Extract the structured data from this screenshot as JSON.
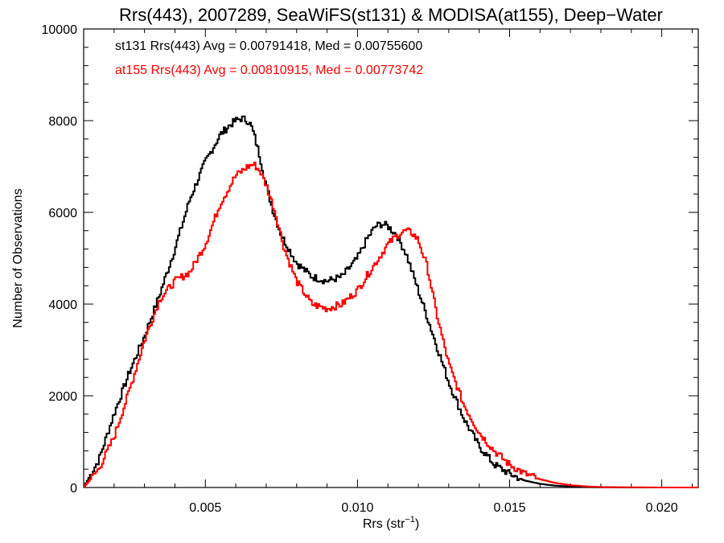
{
  "chart_data": {
    "type": "line",
    "title": "Rrs(443), 2007289, SeaWiFS(st131) & MODISA(at155), Deep−Water",
    "xlabel_main": "Rrs (str",
    "xlabel_sup": "−1",
    "xlabel_end": ")",
    "ylabel": "Number of Observations",
    "xlim": [
      0.001,
      0.0212
    ],
    "ylim": [
      0,
      10000
    ],
    "x_ticks": [
      0.005,
      0.01,
      0.015,
      0.02
    ],
    "x_tick_labels": [
      "0.005",
      "0.010",
      "0.015",
      "0.020"
    ],
    "y_ticks": [
      0,
      2000,
      4000,
      6000,
      8000,
      10000
    ],
    "y_tick_labels": [
      "0",
      "2000",
      "4000",
      "6000",
      "8000",
      "10000"
    ],
    "step": true,
    "series": [
      {
        "name": "st131",
        "color": "#000000",
        "legend": "st131 Rrs(443) Avg = 0.00791418, Med = 0.00755600",
        "x": [
          0.001,
          0.0015,
          0.002,
          0.0025,
          0.003,
          0.0035,
          0.004,
          0.0045,
          0.005,
          0.0055,
          0.0058,
          0.006,
          0.0062,
          0.0064,
          0.0065,
          0.0066,
          0.0068,
          0.007,
          0.0072,
          0.0075,
          0.008,
          0.0085,
          0.009,
          0.0095,
          0.01,
          0.0103,
          0.0106,
          0.0108,
          0.011,
          0.0113,
          0.0116,
          0.012,
          0.0125,
          0.013,
          0.0135,
          0.014,
          0.0145,
          0.015,
          0.0155,
          0.016,
          0.0165,
          0.017,
          0.0175,
          0.018,
          0.019,
          0.02,
          0.0212
        ],
        "y": [
          0,
          600,
          1600,
          2500,
          3300,
          4200,
          5200,
          6300,
          7100,
          7700,
          7900,
          8000,
          8050,
          8000,
          7900,
          7700,
          7200,
          6600,
          6100,
          5500,
          4900,
          4600,
          4500,
          4600,
          5000,
          5400,
          5700,
          5750,
          5700,
          5500,
          5100,
          4300,
          3300,
          2300,
          1500,
          900,
          500,
          300,
          150,
          80,
          40,
          20,
          10,
          5,
          0,
          0,
          0
        ]
      },
      {
        "name": "at155",
        "color": "#ff0000",
        "legend": "at155 Rrs(443) Avg = 0.00810915, Med = 0.00773742",
        "x": [
          0.001,
          0.0015,
          0.002,
          0.0025,
          0.003,
          0.0035,
          0.004,
          0.0045,
          0.005,
          0.0055,
          0.006,
          0.0064,
          0.0066,
          0.0068,
          0.007,
          0.0073,
          0.0076,
          0.008,
          0.0085,
          0.009,
          0.0095,
          0.01,
          0.0105,
          0.011,
          0.0113,
          0.0116,
          0.0118,
          0.012,
          0.0123,
          0.0126,
          0.013,
          0.0135,
          0.014,
          0.0145,
          0.015,
          0.0155,
          0.016,
          0.0165,
          0.017,
          0.0175,
          0.018,
          0.019,
          0.02,
          0.0212
        ],
        "y": [
          0,
          400,
          1100,
          2100,
          3200,
          4100,
          4500,
          4700,
          5300,
          6200,
          6800,
          7000,
          7050,
          6900,
          6600,
          6000,
          5200,
          4500,
          4000,
          3900,
          4000,
          4300,
          4800,
          5300,
          5500,
          5600,
          5550,
          5400,
          4800,
          3800,
          2700,
          1800,
          1200,
          800,
          500,
          300,
          180,
          100,
          50,
          25,
          10,
          5,
          0,
          0
        ]
      }
    ]
  }
}
